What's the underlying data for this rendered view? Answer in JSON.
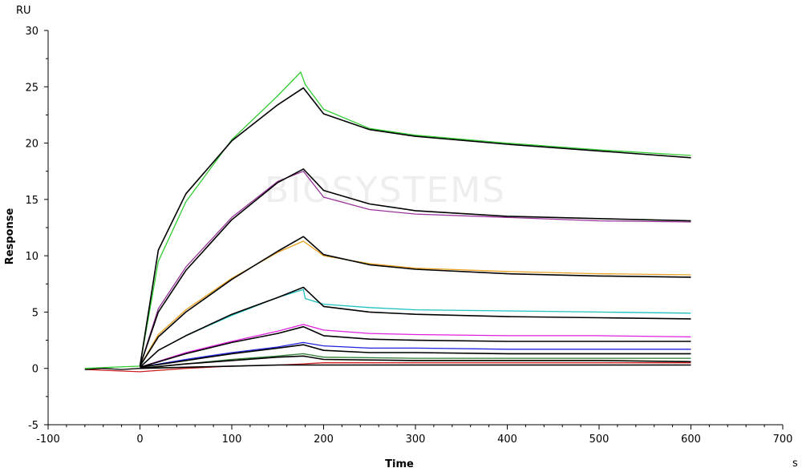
{
  "chart_data": {
    "type": "line",
    "title": "",
    "xlabel": "Time",
    "x_unit": "s",
    "ylabel": "Response",
    "y_unit": "RU",
    "xlim": [
      -100,
      700
    ],
    "ylim": [
      -5,
      30
    ],
    "x_ticks": [
      -100,
      0,
      100,
      200,
      300,
      400,
      500,
      600,
      700
    ],
    "y_ticks": [
      -5,
      0,
      5,
      10,
      15,
      20,
      25,
      30
    ],
    "grid": false,
    "legend": "none",
    "watermark": "BIOSYSTEMS",
    "series": [
      {
        "color": "#33cc33",
        "role": "data",
        "x": [
          -60,
          0,
          20,
          50,
          100,
          150,
          175,
          180,
          200,
          250,
          300,
          400,
          500,
          600
        ],
        "y": [
          0,
          0.2,
          9.5,
          14.8,
          20.3,
          24.2,
          26.3,
          25.2,
          23.0,
          21.3,
          20.7,
          20.0,
          19.4,
          18.9
        ]
      },
      {
        "color": "#000000",
        "role": "fit",
        "x": [
          0,
          20,
          50,
          100,
          150,
          178,
          200,
          250,
          300,
          400,
          500,
          600
        ],
        "y": [
          0.2,
          10.5,
          15.5,
          20.2,
          23.4,
          24.9,
          22.6,
          21.2,
          20.6,
          19.9,
          19.3,
          18.7
        ]
      },
      {
        "color": "#993399",
        "role": "data",
        "x": [
          0,
          20,
          50,
          100,
          150,
          178,
          200,
          250,
          300,
          400,
          500,
          600
        ],
        "y": [
          0.2,
          5.3,
          9.0,
          13.4,
          16.6,
          17.5,
          15.2,
          14.1,
          13.7,
          13.4,
          13.1,
          13.0
        ]
      },
      {
        "color": "#000000",
        "role": "fit",
        "x": [
          0,
          20,
          50,
          100,
          150,
          178,
          200,
          250,
          300,
          400,
          500,
          600
        ],
        "y": [
          0.2,
          5.0,
          8.7,
          13.2,
          16.5,
          17.7,
          15.8,
          14.6,
          14.0,
          13.5,
          13.3,
          13.1
        ]
      },
      {
        "color": "#e8a020",
        "role": "data",
        "x": [
          0,
          20,
          50,
          100,
          150,
          178,
          200,
          250,
          300,
          400,
          500,
          600
        ],
        "y": [
          0.2,
          3.0,
          5.2,
          8.0,
          10.3,
          11.3,
          10.0,
          9.3,
          8.9,
          8.6,
          8.4,
          8.3
        ]
      },
      {
        "color": "#000000",
        "role": "fit",
        "x": [
          0,
          20,
          50,
          100,
          150,
          178,
          200,
          250,
          300,
          400,
          500,
          600
        ],
        "y": [
          0.2,
          2.8,
          5.0,
          7.9,
          10.4,
          11.7,
          10.1,
          9.2,
          8.8,
          8.4,
          8.2,
          8.1
        ]
      },
      {
        "color": "#20c0c0",
        "role": "data",
        "x": [
          0,
          20,
          50,
          100,
          150,
          178,
          180,
          200,
          250,
          300,
          400,
          500,
          600
        ],
        "y": [
          0.1,
          1.6,
          2.9,
          4.7,
          6.3,
          7.0,
          6.2,
          5.7,
          5.4,
          5.2,
          5.1,
          5.0,
          4.9
        ]
      },
      {
        "color": "#000000",
        "role": "fit",
        "x": [
          0,
          20,
          50,
          100,
          150,
          178,
          200,
          250,
          300,
          400,
          500,
          600
        ],
        "y": [
          0.1,
          1.6,
          2.9,
          4.8,
          6.3,
          7.2,
          5.5,
          5.0,
          4.8,
          4.6,
          4.5,
          4.4
        ]
      },
      {
        "color": "#e020e0",
        "role": "data",
        "x": [
          0,
          50,
          100,
          150,
          178,
          200,
          250,
          300,
          400,
          500,
          600
        ],
        "y": [
          0.1,
          1.4,
          2.4,
          3.3,
          3.9,
          3.4,
          3.1,
          3.0,
          2.9,
          2.9,
          2.8
        ]
      },
      {
        "color": "#000000",
        "role": "fit",
        "x": [
          0,
          50,
          100,
          150,
          178,
          200,
          250,
          300,
          400,
          500,
          600
        ],
        "y": [
          0.1,
          1.3,
          2.3,
          3.1,
          3.7,
          2.9,
          2.6,
          2.5,
          2.4,
          2.4,
          2.4
        ]
      },
      {
        "color": "#2020e0",
        "role": "data",
        "x": [
          0,
          50,
          100,
          150,
          178,
          200,
          250,
          300,
          400,
          500,
          600
        ],
        "y": [
          0.1,
          0.8,
          1.4,
          1.9,
          2.3,
          2.0,
          1.8,
          1.8,
          1.7,
          1.7,
          1.7
        ]
      },
      {
        "color": "#000000",
        "role": "fit",
        "x": [
          0,
          50,
          100,
          150,
          178,
          200,
          250,
          300,
          400,
          500,
          600
        ],
        "y": [
          0.1,
          0.7,
          1.3,
          1.8,
          2.1,
          1.6,
          1.4,
          1.4,
          1.3,
          1.3,
          1.3
        ]
      },
      {
        "color": "#2e7d32",
        "role": "data",
        "x": [
          0,
          50,
          100,
          150,
          178,
          200,
          300,
          400,
          500,
          600
        ],
        "y": [
          0.0,
          0.4,
          0.8,
          1.1,
          1.3,
          1.0,
          0.9,
          0.9,
          0.9,
          0.9
        ]
      },
      {
        "color": "#000000",
        "role": "fit",
        "x": [
          0,
          50,
          100,
          150,
          178,
          200,
          300,
          400,
          500,
          600
        ],
        "y": [
          0.0,
          0.4,
          0.7,
          1.0,
          1.1,
          0.8,
          0.7,
          0.7,
          0.7,
          0.6
        ]
      },
      {
        "color": "#cc2020",
        "role": "data",
        "x": [
          -60,
          0,
          50,
          100,
          150,
          178,
          200,
          300,
          400,
          500,
          600
        ],
        "y": [
          -0.1,
          -0.3,
          0.0,
          0.2,
          0.3,
          0.4,
          0.5,
          0.5,
          0.5,
          0.5,
          0.5
        ]
      },
      {
        "color": "#000000",
        "role": "fit",
        "x": [
          0,
          50,
          100,
          150,
          178,
          200,
          300,
          400,
          500,
          600
        ],
        "y": [
          0.0,
          0.1,
          0.2,
          0.3,
          0.3,
          0.3,
          0.3,
          0.3,
          0.3,
          0.3
        ]
      },
      {
        "color": "#000000",
        "role": "baseline",
        "x": [
          -60,
          -40,
          -20,
          0
        ],
        "y": [
          -0.1,
          0.0,
          -0.1,
          0.0
        ]
      }
    ]
  }
}
